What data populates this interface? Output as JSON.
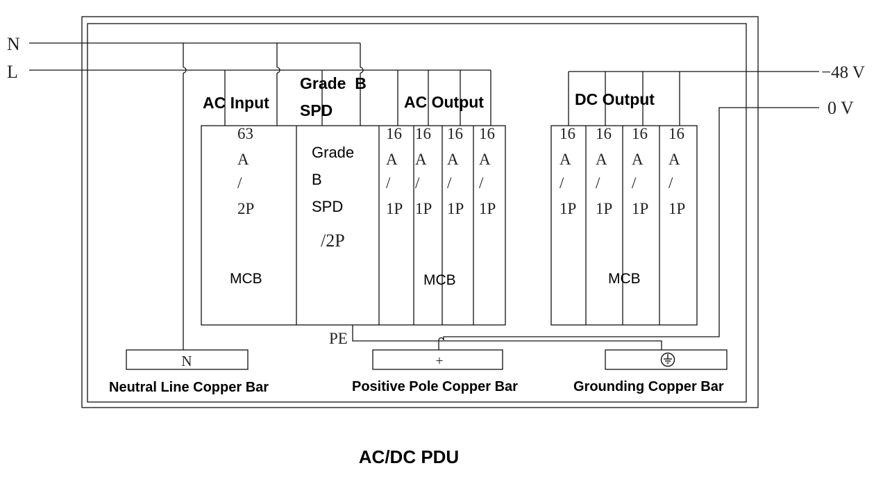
{
  "caption": "AC/DC PDU",
  "lines": {
    "neutral": "N",
    "live": "L",
    "dc_negative": "−48 V",
    "dc_zero": "0 V"
  },
  "section_labels": {
    "ac_input": "AC Input",
    "spd_header": [
      "Grade  B",
      "SPD"
    ],
    "ac_output": "AC Output",
    "dc_output": "DC Output"
  },
  "breakers": {
    "ac_input": {
      "rating": [
        "63",
        "A",
        "/",
        "2P"
      ],
      "type": "MCB"
    },
    "spd": {
      "name": [
        "Grade",
        "B",
        "SPD"
      ],
      "poles": "/2P"
    },
    "ac_output": {
      "rating": [
        "16",
        "A",
        "/",
        "1P"
      ],
      "count": 4,
      "type": "MCB"
    },
    "dc_output": {
      "rating": [
        "16",
        "A",
        "/",
        "1P"
      ],
      "count": 4,
      "type": "MCB"
    }
  },
  "pe_label": "PE",
  "copper_bars": {
    "neutral": {
      "symbol": "N",
      "label": "Neutral Line Copper Bar"
    },
    "positive": {
      "symbol": "+",
      "label": "Positive Pole Copper Bar"
    },
    "grounding": {
      "symbol": "ground-symbol",
      "label": "Grounding Copper Bar"
    }
  }
}
